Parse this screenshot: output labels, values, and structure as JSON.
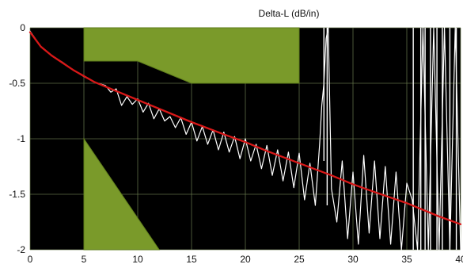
{
  "chart_data": {
    "type": "line",
    "title": "Delta-L (dB/in)",
    "xlabel": "",
    "ylabel": "",
    "xlim": [
      0,
      40
    ],
    "ylim": [
      -2,
      0
    ],
    "grid": true,
    "x_ticks": [
      "0",
      "5",
      "10",
      "15",
      "20",
      "25",
      "30",
      "35",
      "40"
    ],
    "y_ticks": [
      "0",
      "-0.5",
      "-1",
      "-1.5",
      "-2"
    ],
    "background_color": "#000000",
    "grid_color": "#6f7f52",
    "mask_color": "#7a9a2a",
    "measured_color": "#ffffff",
    "fit_color": "#d81818",
    "series": [
      {
        "kind": "fit",
        "x": [
          0,
          1,
          2,
          4,
          6,
          8,
          10,
          12,
          15,
          18,
          20,
          22,
          25,
          28,
          30,
          32,
          35,
          38,
          40
        ],
        "y": [
          -0.04,
          -0.17,
          -0.25,
          -0.38,
          -0.49,
          -0.57,
          -0.65,
          -0.73,
          -0.85,
          -0.96,
          -1.03,
          -1.11,
          -1.22,
          -1.33,
          -1.41,
          -1.48,
          -1.58,
          -1.7,
          -1.77
        ]
      },
      {
        "kind": "measured",
        "x": [
          0,
          0.5,
          1,
          2,
          3,
          4,
          5,
          6,
          7,
          7.5,
          8,
          8.5,
          9,
          9.5,
          10,
          10.5,
          11,
          11.5,
          12,
          12.5,
          13,
          13.5,
          14,
          14.5,
          15,
          15.5,
          16,
          16.5,
          17,
          17.5,
          18,
          18.5,
          19,
          19.5,
          20,
          20.5,
          21,
          21.5,
          22,
          22.5,
          23,
          23.5,
          24,
          24.5,
          25,
          25.5,
          26,
          26.5,
          26.9,
          27.1,
          27.3,
          27.5,
          27.7,
          28,
          28.5,
          29,
          29.5,
          30,
          30.5,
          31,
          31.5,
          32,
          32.5,
          33,
          33.5,
          34,
          34.5,
          35,
          35.5,
          36,
          36.5,
          37,
          37.5,
          38,
          38.5,
          39,
          39.5,
          40
        ],
        "y": [
          -0.03,
          -0.1,
          -0.17,
          -0.25,
          -0.31,
          -0.38,
          -0.44,
          -0.49,
          -0.52,
          -0.58,
          -0.55,
          -0.7,
          -0.62,
          -0.69,
          -0.64,
          -0.76,
          -0.68,
          -0.82,
          -0.73,
          -0.84,
          -0.8,
          -0.9,
          -0.81,
          -0.96,
          -0.85,
          -1.02,
          -0.89,
          -1.05,
          -0.92,
          -1.1,
          -0.94,
          -1.12,
          -0.98,
          -1.18,
          -1.0,
          -1.2,
          -1.05,
          -1.27,
          -1.06,
          -1.33,
          -1.1,
          -1.38,
          -1.12,
          -1.44,
          -1.13,
          -1.55,
          -1.22,
          -1.6,
          -1.05,
          -0.7,
          -0.5,
          -0.1,
          0,
          -1.45,
          -1.75,
          -1.2,
          -1.9,
          -1.3,
          -1.95,
          -1.15,
          -1.85,
          -1.2,
          -1.9,
          -1.25,
          -1.95,
          -1.3,
          -2.0,
          -1.4,
          -1.55,
          -2.0,
          0,
          -2.0,
          0,
          -2.0,
          0,
          -2.0,
          0,
          -2.0
        ]
      }
    ],
    "mask_regions": [
      {
        "label": "upper-limit-mask",
        "x": [
          5,
          25,
          25,
          15,
          10,
          5
        ],
        "y": [
          0,
          0,
          -0.5,
          -0.5,
          -0.3,
          -0.3
        ]
      },
      {
        "label": "lower-limit-mask",
        "x": [
          5,
          12,
          5
        ],
        "y": [
          -1.0,
          -2.0,
          -2.0
        ]
      }
    ],
    "vertical_spikes": [
      {
        "x": 27.3,
        "y_top": 0,
        "y_bottom": -1.2
      },
      {
        "x": 27.6,
        "y_top": 0,
        "y_bottom": -1.6
      },
      {
        "x": 35.6,
        "y_top": 0,
        "y_bottom": -2.0
      },
      {
        "x": 36.3,
        "y_top": 0,
        "y_bottom": -2.0
      },
      {
        "x": 36.7,
        "y_top": 0,
        "y_bottom": -2.0
      },
      {
        "x": 37.2,
        "y_top": 0,
        "y_bottom": -2.0
      },
      {
        "x": 37.8,
        "y_top": 0,
        "y_bottom": -2.0
      },
      {
        "x": 38.3,
        "y_top": 0,
        "y_bottom": -2.0
      },
      {
        "x": 39.0,
        "y_top": 0,
        "y_bottom": -2.0
      },
      {
        "x": 39.6,
        "y_top": 0,
        "y_bottom": -2.0
      }
    ]
  }
}
